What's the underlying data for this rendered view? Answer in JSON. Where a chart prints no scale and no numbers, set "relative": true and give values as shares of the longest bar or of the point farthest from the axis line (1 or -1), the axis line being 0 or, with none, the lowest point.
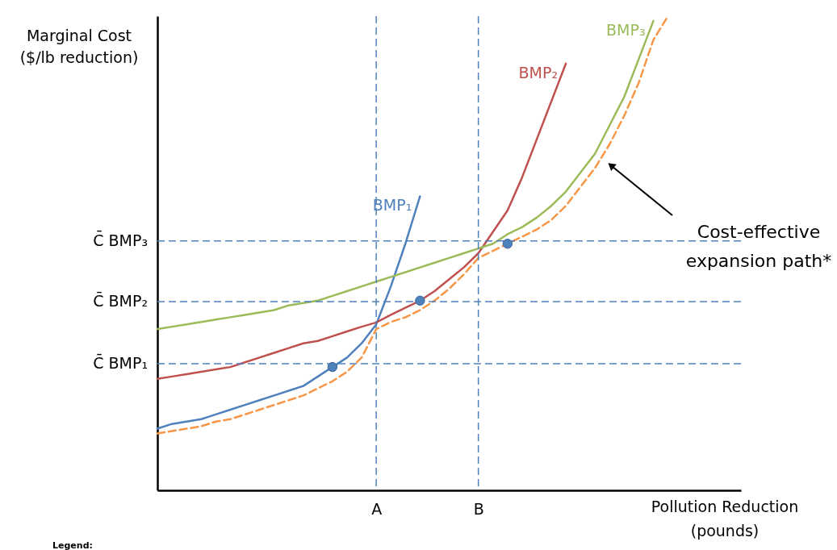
{
  "chart_data": {
    "type": "line",
    "relative": true,
    "grid": false,
    "categories": [
      null,
      null,
      null,
      null,
      null,
      null,
      null,
      null,
      null,
      null,
      null,
      null,
      null,
      null,
      null,
      "A",
      null,
      null,
      null,
      null,
      null,
      null,
      "B",
      null,
      null,
      null,
      null,
      null,
      null,
      null,
      null,
      null,
      null,
      null,
      null,
      null,
      null,
      null,
      null,
      null,
      null
    ],
    "xlabel": "Pollution Reduction (pounds)",
    "ylabel": "Marginal Cost ($/lb reduction)",
    "series": [
      {
        "name": "BMP₁",
        "color": "#4f81bd",
        "values": [
          0.13,
          0.14,
          0.145,
          0.15,
          0.16,
          0.17,
          0.18,
          0.19,
          0.2,
          0.21,
          0.22,
          0.24,
          0.26,
          0.28,
          0.31,
          0.35,
          0.43,
          0.52,
          0.62,
          null,
          null,
          null,
          null,
          null,
          null,
          null,
          null,
          null,
          null,
          null,
          null,
          null,
          null,
          null,
          null,
          null,
          null,
          null,
          null,
          null,
          null
        ]
      },
      {
        "name": "BMP₂",
        "color": "#c0504d",
        "values": [
          0.235,
          0.24,
          0.245,
          0.25,
          0.255,
          0.26,
          0.27,
          0.28,
          0.29,
          0.3,
          0.31,
          0.315,
          0.325,
          0.335,
          0.345,
          0.354,
          0.37,
          0.385,
          0.4,
          0.42,
          0.445,
          0.47,
          0.5,
          0.545,
          0.59,
          0.66,
          0.74,
          0.82,
          0.9,
          null,
          null,
          null,
          null,
          null,
          null,
          null,
          null,
          null,
          null,
          null,
          null
        ]
      },
      {
        "name": "BMP₃",
        "color": "#9bbb59",
        "values": [
          0.34,
          0.345,
          0.35,
          0.355,
          0.36,
          0.365,
          0.37,
          0.375,
          0.38,
          0.39,
          0.395,
          0.4,
          0.41,
          0.42,
          0.43,
          0.44,
          0.45,
          0.46,
          0.47,
          0.48,
          0.49,
          0.5,
          0.51,
          0.52,
          0.54,
          0.555,
          0.575,
          0.6,
          0.63,
          0.67,
          0.71,
          0.77,
          0.83,
          0.91,
          0.99,
          null,
          null,
          null,
          null,
          null,
          null
        ]
      },
      {
        "color": "#f79646",
        "line_style": "dashed",
        "values": [
          0.12,
          0.125,
          0.13,
          0.135,
          0.145,
          0.15,
          0.16,
          0.17,
          0.18,
          0.19,
          0.2,
          0.215,
          0.23,
          0.25,
          0.28,
          0.34,
          0.355,
          0.365,
          0.38,
          0.4,
          0.425,
          0.455,
          0.49,
          0.505,
          0.52,
          0.535,
          0.55,
          0.57,
          0.6,
          0.64,
          0.68,
          0.73,
          0.79,
          0.86,
          0.95,
          1.0,
          null,
          null,
          null,
          null,
          null
        ]
      },
      {
        "type": "scatter",
        "marker": "circle",
        "color": "#4f81bd",
        "values": [
          null,
          null,
          null,
          null,
          null,
          null,
          null,
          null,
          null,
          null,
          null,
          null,
          0.26,
          null,
          null,
          null,
          null,
          null,
          0.4,
          null,
          null,
          null,
          null,
          null,
          0.52,
          null,
          null,
          null,
          null,
          null,
          null,
          null,
          null,
          null,
          null,
          null,
          null,
          null,
          null,
          null,
          null
        ]
      }
    ],
    "ref_lines": [
      {
        "axis": "y",
        "value": 0.526,
        "label": "C̄ BMP₃",
        "color": "#4f81bd",
        "line_style": "dashed"
      },
      {
        "axis": "y",
        "value": 0.398,
        "label": "C̄ BMP₂",
        "color": "#4f81bd",
        "line_style": "dashed"
      },
      {
        "axis": "y",
        "value": 0.267,
        "label": "C̄ BMP₁",
        "color": "#4f81bd",
        "line_style": "dashed"
      },
      {
        "axis": "x",
        "value": "A",
        "color": "#4f81bd",
        "line_style": "dashed"
      },
      {
        "axis": "x",
        "value": "B",
        "color": "#4f81bd",
        "line_style": "dashed"
      }
    ],
    "annotations": [
      "Cost-effective expansion path*",
      "Legend:"
    ]
  }
}
